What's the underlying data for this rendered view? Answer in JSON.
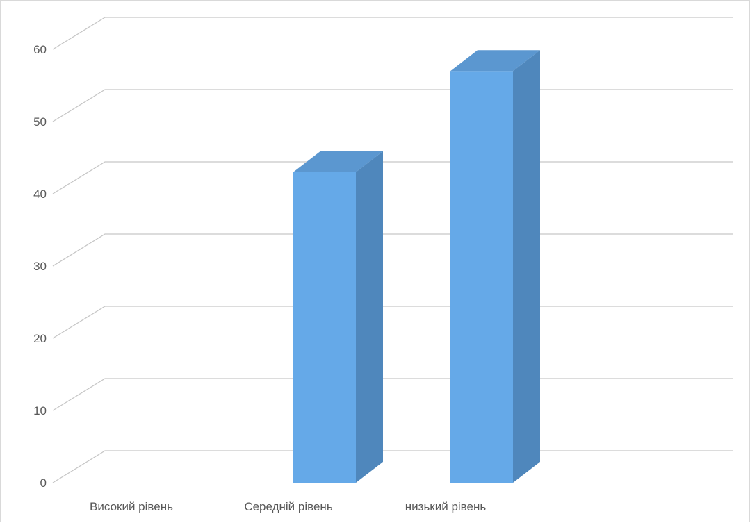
{
  "chart_data": {
    "type": "bar",
    "style": "3d-column",
    "title": "",
    "xlabel": "",
    "ylabel": "",
    "categories": [
      "Високий рівень",
      "Середній рівень",
      "низький рівень"
    ],
    "values": [
      0,
      43,
      57
    ],
    "yticks": [
      "0",
      "10",
      "20",
      "30",
      "40",
      "50",
      "60"
    ],
    "ylim": [
      0,
      60
    ],
    "grid": true,
    "legend": "none",
    "colors": {
      "front": "#65a9e8",
      "top": "#5b97d0",
      "side": "#4f87bc",
      "edge": "#3a72a8",
      "grid": "#c6c6c6"
    }
  }
}
